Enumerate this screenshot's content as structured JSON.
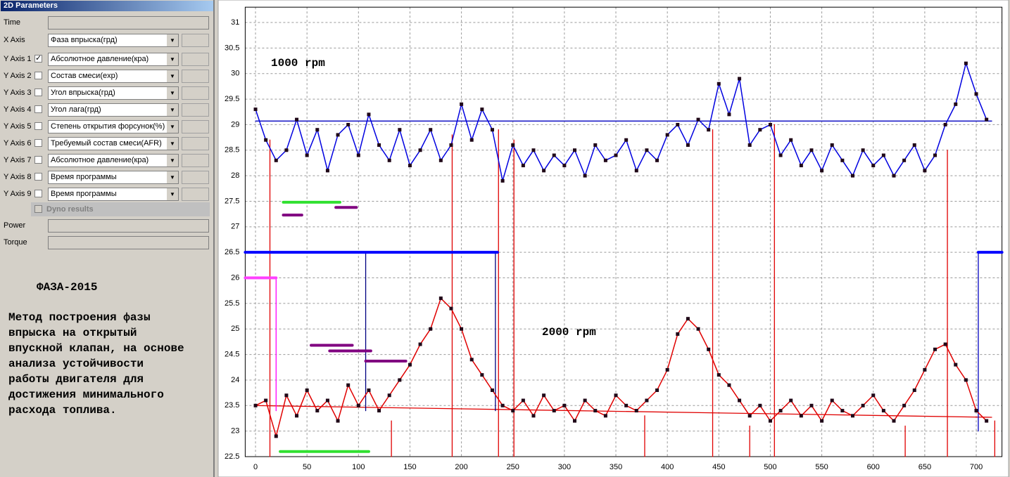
{
  "panel": {
    "title": "2D Parameters",
    "rows": [
      {
        "label": "Time"
      },
      {
        "label": "X Axis",
        "value": "Фаза впрыска(грд)"
      },
      {
        "label": "Y Axis 1",
        "checked": true,
        "value": "Абсолютное давление(кра)"
      },
      {
        "label": "Y Axis 2",
        "checked": false,
        "value": "Состав смеси(exp)"
      },
      {
        "label": "Y Axis 3",
        "checked": false,
        "value": "Угол впрыска(грд)"
      },
      {
        "label": "Y Axis 4",
        "checked": false,
        "value": "Угол лага(грд)"
      },
      {
        "label": "Y Axis 5",
        "checked": false,
        "value": "Степень открытия форсунок(%)"
      },
      {
        "label": "Y Axis 6",
        "checked": false,
        "value": "Требуемый состав смеси(AFR)"
      },
      {
        "label": "Y Axis 7",
        "checked": false,
        "value": "Абсолютное давление(кра)"
      },
      {
        "label": "Y Axis 8",
        "checked": false,
        "value": "Время программы"
      },
      {
        "label": "Y Axis 9",
        "checked": false,
        "value": "Время программы"
      },
      {
        "label": "Dyno results",
        "checked": false
      },
      {
        "label": "Power"
      },
      {
        "label": "Torque"
      }
    ],
    "heading": "ФАЗА-2015",
    "description": [
      "Метод построения фазы",
      "впрыска на открытый",
      "впускной клапан, на основе",
      "анализа устойчивости",
      "работы двигателя для",
      "достижения минимального",
      "расхода топлива."
    ]
  },
  "chart_data": {
    "type": "line",
    "annotations": [
      "1000 rpm",
      "2000 rpm"
    ],
    "x": [
      0,
      10,
      20,
      30,
      40,
      50,
      60,
      70,
      80,
      90,
      100,
      110,
      120,
      130,
      140,
      150,
      160,
      170,
      180,
      190,
      200,
      210,
      220,
      230,
      240,
      250,
      260,
      270,
      280,
      290,
      300,
      310,
      320,
      330,
      340,
      350,
      360,
      370,
      380,
      390,
      400,
      410,
      420,
      430,
      440,
      450,
      460,
      470,
      480,
      490,
      500,
      510,
      520,
      530,
      540,
      550,
      560,
      570,
      580,
      590,
      600,
      610,
      620,
      630,
      640,
      650,
      660,
      670,
      680,
      690,
      700,
      710
    ],
    "marker_color": "#200818",
    "series": [
      {
        "color": "#0000e0",
        "values": [
          29.3,
          28.7,
          28.3,
          28.5,
          29.1,
          28.4,
          28.9,
          28.1,
          28.8,
          29.0,
          28.4,
          29.2,
          28.6,
          28.3,
          28.9,
          28.2,
          28.5,
          28.9,
          28.3,
          28.6,
          29.4,
          28.7,
          29.3,
          28.9,
          27.9,
          28.6,
          28.2,
          28.5,
          28.1,
          28.4,
          28.2,
          28.5,
          28.0,
          28.6,
          28.3,
          28.4,
          28.7,
          28.1,
          28.5,
          28.3,
          28.8,
          29.0,
          28.6,
          29.1,
          28.9,
          29.8,
          29.2,
          29.9,
          28.6,
          28.9,
          29.0,
          28.4,
          28.7,
          28.2,
          28.5,
          28.1,
          28.6,
          28.3,
          28.0,
          28.5,
          28.2,
          28.4,
          28.0,
          28.3,
          28.6,
          28.1,
          28.4,
          29.0,
          29.4,
          30.2,
          29.6,
          29.1
        ]
      },
      {
        "color": "#e00000",
        "values": [
          23.5,
          23.6,
          22.9,
          23.7,
          23.3,
          23.8,
          23.4,
          23.6,
          23.2,
          23.9,
          23.5,
          23.8,
          23.4,
          23.7,
          24.0,
          24.3,
          24.7,
          25.0,
          25.6,
          25.4,
          25.0,
          24.4,
          24.1,
          23.8,
          23.5,
          23.4,
          23.6,
          23.3,
          23.7,
          23.4,
          23.5,
          23.2,
          23.6,
          23.4,
          23.3,
          23.7,
          23.5,
          23.4,
          23.6,
          23.8,
          24.2,
          24.9,
          25.2,
          25.0,
          24.6,
          24.1,
          23.9,
          23.6,
          23.3,
          23.5,
          23.2,
          23.4,
          23.6,
          23.3,
          23.5,
          23.2,
          23.6,
          23.4,
          23.3,
          23.5,
          23.7,
          23.4,
          23.2,
          23.5,
          23.8,
          24.2,
          24.6,
          24.7,
          24.3,
          24.0,
          23.4,
          23.2
        ]
      }
    ],
    "lines": [
      {
        "color": "#0000c0",
        "x": [
          0,
          715
        ],
        "values": [
          29.07,
          29.07
        ]
      },
      {
        "color": "#e00000",
        "x": [
          0,
          715
        ],
        "values": [
          23.5,
          23.27
        ]
      },
      {
        "color": "#e00000",
        "x": [
          14,
          14
        ],
        "values": [
          22.5,
          28.7
        ]
      },
      {
        "color": "#e00000",
        "x": [
          132,
          132
        ],
        "values": [
          22.5,
          23.2
        ]
      },
      {
        "color": "#e00000",
        "x": [
          191,
          191
        ],
        "values": [
          22.5,
          28.8
        ]
      },
      {
        "color": "#e00000",
        "x": [
          236,
          236
        ],
        "values": [
          22.5,
          28.9
        ]
      },
      {
        "color": "#e00000",
        "x": [
          251,
          251
        ],
        "values": [
          22.5,
          28.7
        ]
      },
      {
        "color": "#e00000",
        "x": [
          378,
          378
        ],
        "values": [
          22.5,
          23.3
        ]
      },
      {
        "color": "#e00000",
        "x": [
          444,
          444
        ],
        "values": [
          22.5,
          28.9
        ]
      },
      {
        "color": "#e00000",
        "x": [
          480,
          480
        ],
        "values": [
          22.5,
          23.1
        ]
      },
      {
        "color": "#e00000",
        "x": [
          504,
          504
        ],
        "values": [
          22.5,
          29.0
        ]
      },
      {
        "color": "#e00000",
        "x": [
          631,
          631
        ],
        "values": [
          22.5,
          23.1
        ]
      },
      {
        "color": "#e00000",
        "x": [
          672,
          672
        ],
        "values": [
          22.5,
          28.5
        ]
      },
      {
        "color": "#e00000",
        "x": [
          718,
          718
        ],
        "values": [
          22.5,
          23.2
        ]
      },
      {
        "color": "#000080",
        "x": [
          107,
          107
        ],
        "values": [
          26.5,
          23.4
        ]
      },
      {
        "color": "#000080",
        "x": [
          233,
          233
        ],
        "values": [
          26.5,
          23.4
        ]
      },
      {
        "color": "#ff00ff",
        "x": [
          20,
          20
        ],
        "values": [
          26,
          23.4
        ]
      },
      {
        "color": "#0000c0",
        "x": [
          702,
          702
        ],
        "values": [
          26.5,
          23.0
        ]
      }
    ],
    "bands": [
      {
        "color": "#0000ff",
        "x": [
          -10,
          235
        ],
        "values": [
          26.5,
          26.5
        ]
      },
      {
        "color": "#0000ff",
        "x": [
          702,
          725
        ],
        "values": [
          26.5,
          26.5
        ]
      },
      {
        "color": "#ff40ff",
        "x": [
          -10,
          20
        ],
        "values": [
          26,
          26
        ]
      },
      {
        "color": "#30e030",
        "x": [
          27,
          82
        ],
        "values": [
          27.48,
          27.48
        ]
      },
      {
        "color": "#800080",
        "x": [
          78,
          98
        ],
        "values": [
          27.38,
          27.38
        ]
      },
      {
        "color": "#800080",
        "x": [
          27,
          45
        ],
        "values": [
          27.23,
          27.23
        ]
      },
      {
        "color": "#800080",
        "x": [
          54,
          94
        ],
        "values": [
          24.68,
          24.68
        ]
      },
      {
        "color": "#800080",
        "x": [
          72,
          112
        ],
        "values": [
          24.57,
          24.57
        ]
      },
      {
        "color": "#800080",
        "x": [
          107,
          146
        ],
        "values": [
          24.37,
          24.37
        ]
      },
      {
        "color": "#30e030",
        "x": [
          24,
          110
        ],
        "values": [
          22.6,
          22.6
        ]
      }
    ],
    "xlim": [
      -10,
      725
    ],
    "ylim": [
      22.5,
      31.3
    ],
    "xticks": [
      0,
      50,
      100,
      150,
      200,
      250,
      300,
      350,
      400,
      450,
      500,
      550,
      600,
      650,
      700
    ],
    "yticks": [
      22.5,
      23,
      23.5,
      24,
      24.5,
      25,
      25.5,
      26,
      26.5,
      27,
      27.5,
      28,
      28.5,
      29,
      29.5,
      30,
      30.5,
      31
    ],
    "grid": true
  }
}
